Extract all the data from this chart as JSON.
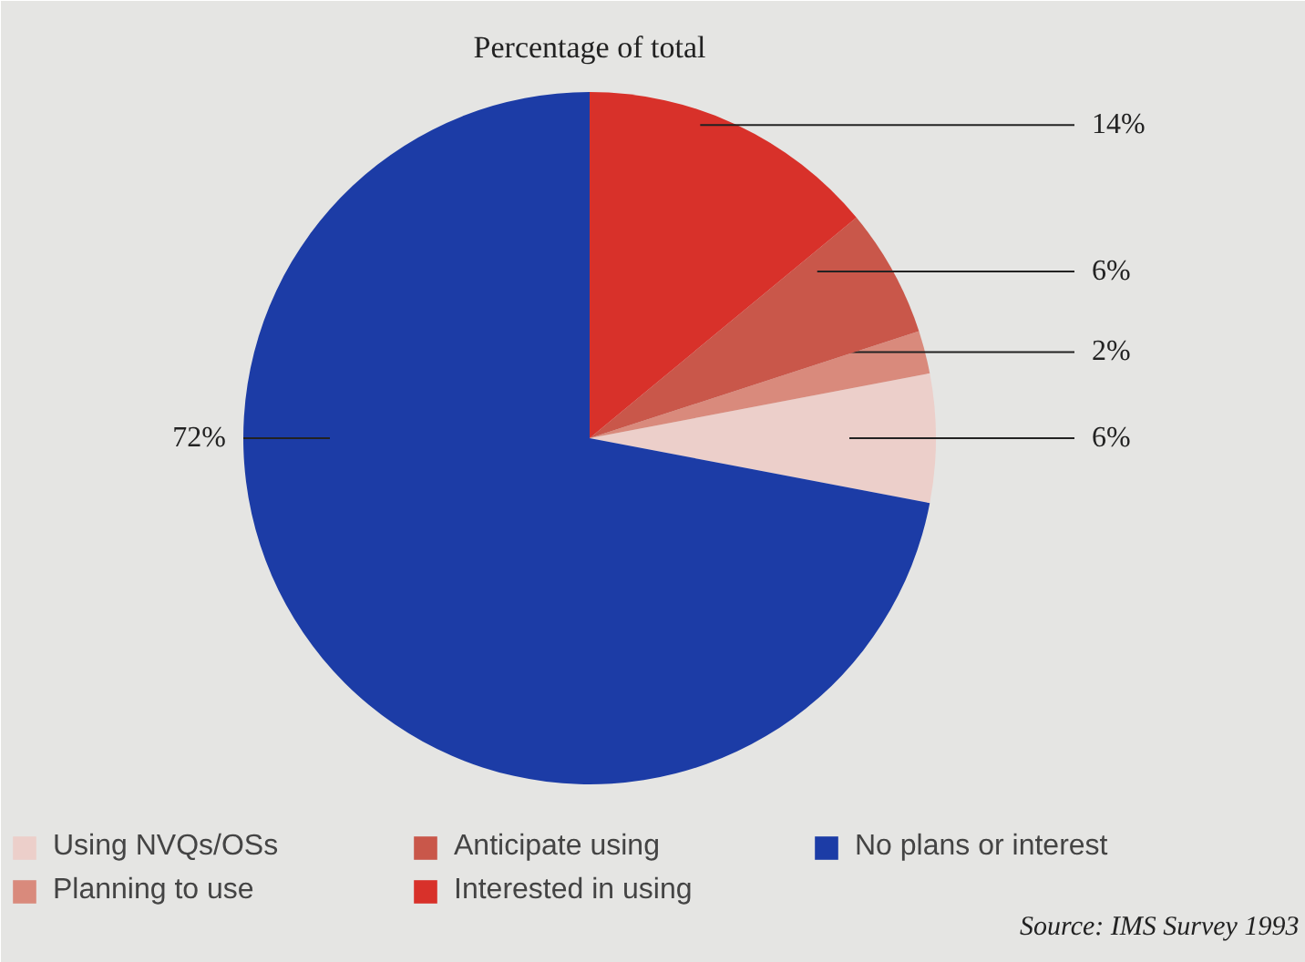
{
  "chart_data": {
    "type": "pie",
    "title": "Percentage of total",
    "categories": [
      "Using NVQs/OSs",
      "Planning to use",
      "Anticipate using",
      "Interested in using",
      "No plans or interest"
    ],
    "values": [
      6,
      2,
      6,
      14,
      72
    ],
    "colors": [
      "#eccfca",
      "#d98a7c",
      "#c9574a",
      "#d8312a",
      "#1c3ca6"
    ],
    "value_labels": [
      "6%",
      "2%",
      "6%",
      "14%",
      "72%"
    ],
    "legend": "bottom",
    "annotations": [
      "Source: IMS Survey 1993"
    ]
  }
}
